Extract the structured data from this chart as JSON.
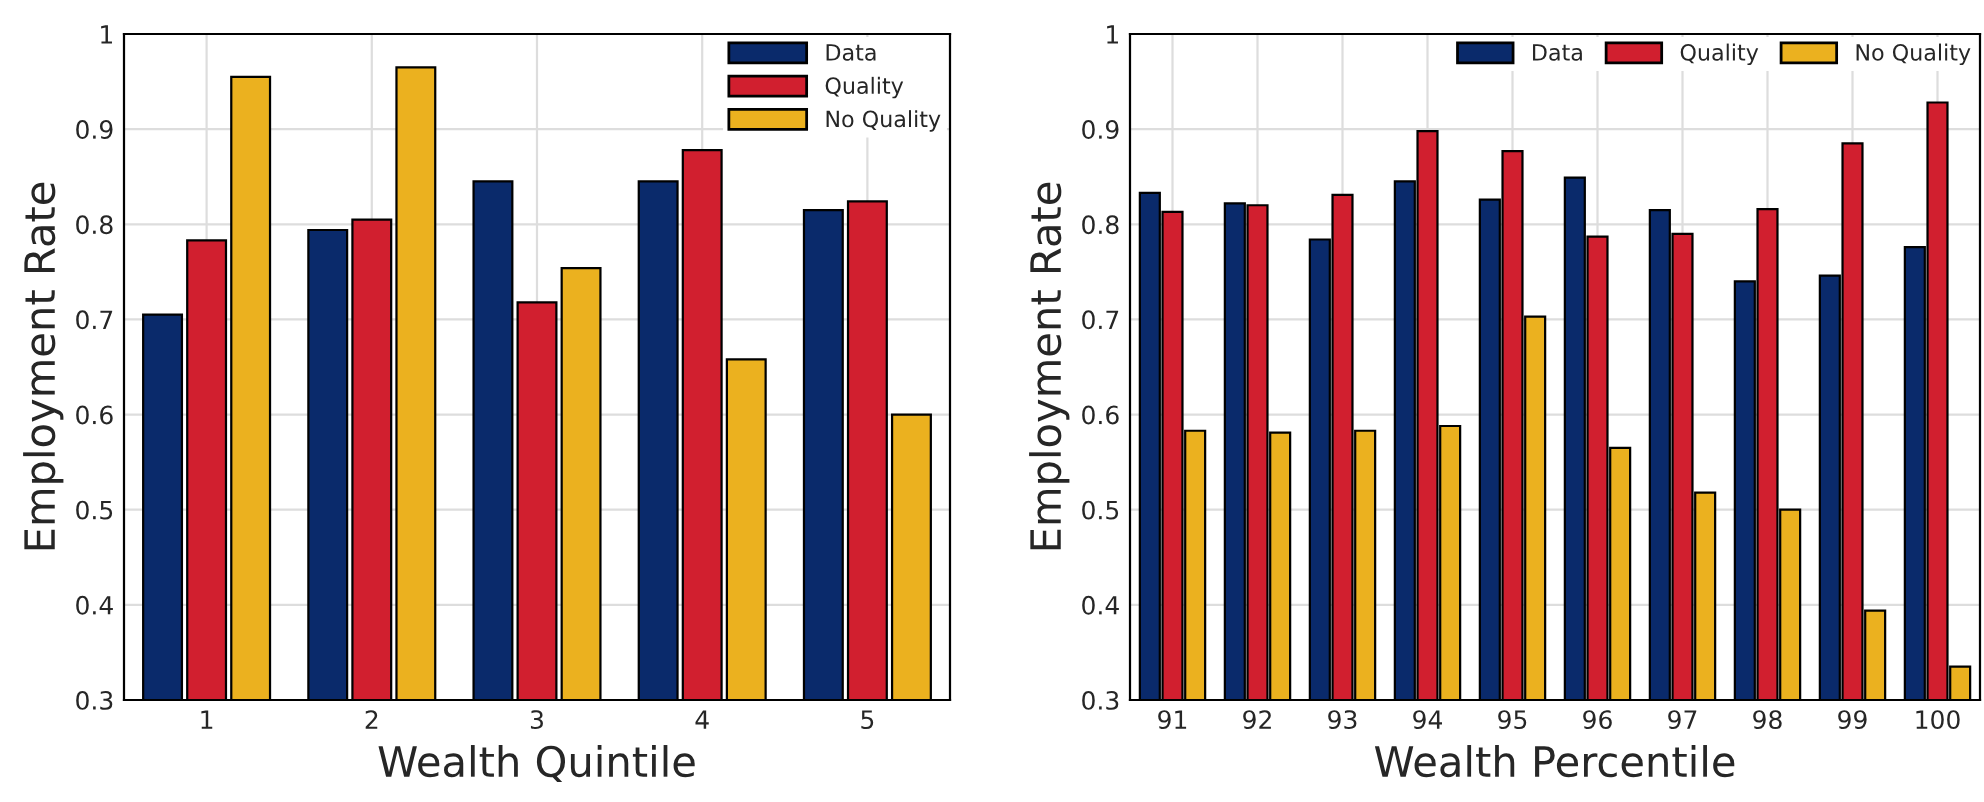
{
  "chart_data": [
    {
      "type": "bar",
      "xlabel": "Wealth Quintile",
      "ylabel": "Employment Rate",
      "categories": [
        "1",
        "2",
        "3",
        "4",
        "5"
      ],
      "ylim": [
        0.3,
        1
      ],
      "yticks": [
        0.3,
        0.4,
        0.5,
        0.6,
        0.7,
        0.8,
        0.9,
        1
      ],
      "grid": true,
      "legend": "top right",
      "series": [
        {
          "name": "Data",
          "color": "#0a2a6b",
          "values": [
            0.705,
            0.794,
            0.845,
            0.845,
            0.815
          ]
        },
        {
          "name": "Quality",
          "color": "#d11f2f",
          "values": [
            0.783,
            0.805,
            0.718,
            0.878,
            0.824
          ]
        },
        {
          "name": "No Quality",
          "color": "#ebb11f",
          "values": [
            0.955,
            0.965,
            0.754,
            0.658,
            0.6
          ]
        }
      ]
    },
    {
      "type": "bar",
      "xlabel": "Wealth Percentile",
      "ylabel": "Employment Rate",
      "categories": [
        "91",
        "92",
        "93",
        "94",
        "95",
        "96",
        "97",
        "98",
        "99",
        "100"
      ],
      "ylim": [
        0.3,
        1
      ],
      "yticks": [
        0.3,
        0.4,
        0.5,
        0.6,
        0.7,
        0.8,
        0.9,
        1
      ],
      "grid": true,
      "legend": "top right",
      "series": [
        {
          "name": "Data",
          "color": "#0a2a6b",
          "values": [
            0.833,
            0.822,
            0.784,
            0.845,
            0.826,
            0.849,
            0.815,
            0.74,
            0.746,
            0.776
          ]
        },
        {
          "name": "Quality",
          "color": "#d11f2f",
          "values": [
            0.813,
            0.82,
            0.831,
            0.898,
            0.877,
            0.787,
            0.79,
            0.816,
            0.885,
            0.928
          ]
        },
        {
          "name": "No Quality",
          "color": "#ebb11f",
          "values": [
            0.583,
            0.581,
            0.583,
            0.588,
            0.703,
            0.565,
            0.518,
            0.5,
            0.394,
            0.335
          ]
        }
      ]
    }
  ]
}
